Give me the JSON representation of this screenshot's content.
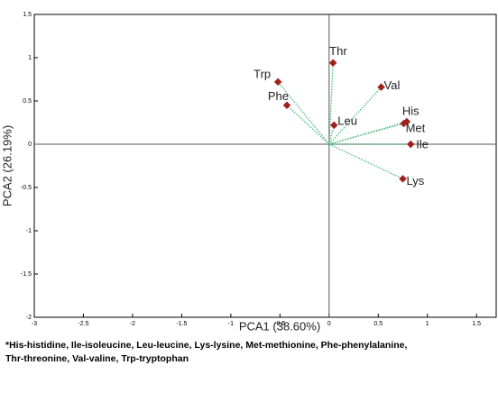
{
  "chart_data": {
    "type": "scatter",
    "labels": [
      "Thr",
      "Val",
      "Trp",
      "Phe",
      "Leu",
      "His",
      "Met",
      "Ile",
      "Lys"
    ],
    "x": [
      0.04,
      0.53,
      -0.52,
      -0.43,
      0.05,
      0.79,
      0.76,
      0.83,
      0.75
    ],
    "y": [
      0.94,
      0.66,
      0.72,
      0.45,
      0.22,
      0.26,
      0.24,
      0.0,
      -0.4
    ],
    "color": "#a0201e",
    "line_color": "#3cb371",
    "x_label": "PCA1 (38.60%)",
    "y_label": "PCA2 (26.19%)",
    "xlim": [
      -3,
      1.7
    ],
    "ylim": [
      -2,
      1.5
    ],
    "xticks": [
      -3,
      -2.5,
      -2,
      -1.5,
      -1,
      -0.5,
      0,
      0.5,
      1,
      1.5
    ],
    "yticks": [
      -2,
      -1.5,
      -1,
      -0.5,
      0,
      0.5,
      1,
      1.5
    ],
    "footnote": [
      "*His-histidine, Ile-isoleucine, Leu-leucine, Lys-lysine, Met-methionine, Phe-phenylalanine,",
      "Thr-threonine, Val-valine, Trp-tryptophan"
    ]
  }
}
